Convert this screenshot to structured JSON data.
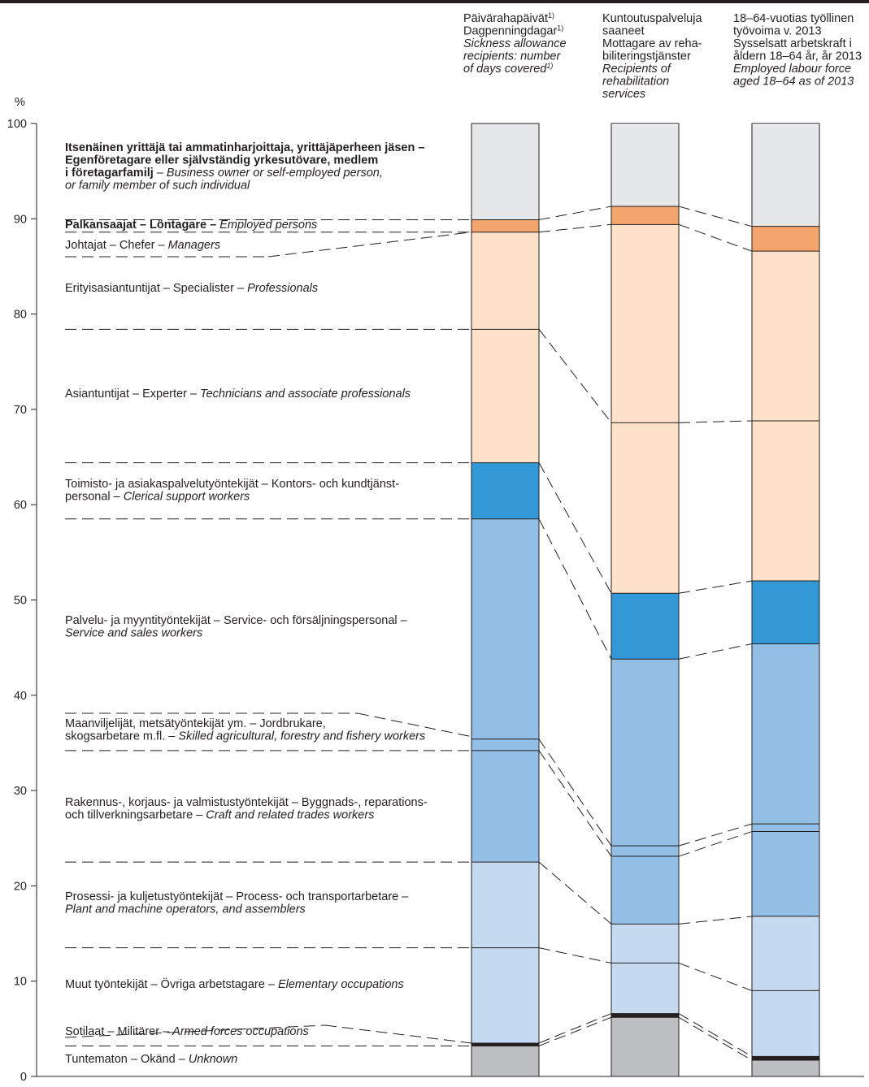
{
  "chart_data": {
    "type": "bar",
    "stacked": true,
    "normalized": true,
    "y_unit": "%",
    "ylim": [
      0,
      100
    ],
    "yticks": [
      0,
      10,
      20,
      30,
      40,
      50,
      60,
      70,
      80,
      90,
      100
    ],
    "columns": [
      {
        "header": [
          {
            "text": "Päivärahapäivät",
            "sup": "1)",
            "style": "normal"
          },
          {
            "text": "Dagpenningdagar",
            "sup": "1)",
            "style": "normal"
          },
          {
            "text": "Sickness allowance",
            "style": "italic"
          },
          {
            "text": "recipients: number",
            "style": "italic"
          },
          {
            "text": "of days covered",
            "sup": "1)",
            "style": "italic"
          }
        ]
      },
      {
        "header": [
          {
            "text": "Kuntoutuspalveluja",
            "style": "normal"
          },
          {
            "text": "saaneet",
            "style": "normal"
          },
          {
            "text": "Mottagare av reha-",
            "style": "normal"
          },
          {
            "text": "biliteringstjänster",
            "style": "normal"
          },
          {
            "text": "Recipients of",
            "style": "italic"
          },
          {
            "text": "rehabilitation",
            "style": "italic"
          },
          {
            "text": "services",
            "style": "italic"
          }
        ]
      },
      {
        "header": [
          {
            "text": "18–64-vuotias työllinen",
            "style": "normal"
          },
          {
            "text": "työvoima v. 2013",
            "style": "normal"
          },
          {
            "text": "Sysselsatt arbetskraft i",
            "style": "normal"
          },
          {
            "text": "åldern 18–64 år, år 2013",
            "style": "normal"
          },
          {
            "text": "Employed labour force",
            "style": "italic"
          },
          {
            "text": "aged 18–64 as of 2013",
            "style": "italic"
          }
        ]
      }
    ],
    "series": [
      {
        "key": "unknown",
        "color": "#bcbec0",
        "values": [
          3.2,
          6.2,
          1.7
        ],
        "label": [
          [
            {
              "t": "Tuntematon – Okänd – "
            },
            {
              "t": "Unknown",
              "i": true
            }
          ]
        ]
      },
      {
        "key": "armed_forces",
        "color": "#231f20",
        "values": [
          0.3,
          0.4,
          0.4
        ],
        "label": [
          [
            {
              "t": "Sotilaat – Militärer – "
            },
            {
              "t": "Armed forces occupations",
              "i": true
            }
          ]
        ]
      },
      {
        "key": "elementary",
        "color": "#c5daf0",
        "values": [
          10.0,
          5.3,
          6.9
        ],
        "label": [
          [
            {
              "t": "Muut työntekijät – Övriga arbetstagare – "
            },
            {
              "t": "Elementary occupations",
              "i": true
            }
          ]
        ]
      },
      {
        "key": "plant_machine",
        "color": "#c5daf0",
        "values": [
          9.0,
          4.1,
          7.8
        ],
        "label": [
          [
            {
              "t": "Prosessi- ja kuljetustyöntekijät – Process- och transportarbetare –"
            }
          ],
          [
            {
              "t": "Plant and machine operators, and assemblers",
              "i": true
            }
          ]
        ]
      },
      {
        "key": "craft_trades",
        "color": "#93bee5",
        "values": [
          11.7,
          7.1,
          8.9
        ],
        "label": [
          [
            {
              "t": "Rakennus-, korjaus- ja valmistustyöntekijät – Byggnads-, reparations-"
            }
          ],
          [
            {
              "t": "och tillverkningsarbetare – "
            },
            {
              "t": "Craft and related trades workers",
              "i": true
            }
          ]
        ]
      },
      {
        "key": "agricultural",
        "color": "#93bee5",
        "values": [
          1.2,
          1.1,
          0.8
        ],
        "label": [
          [
            {
              "t": "Maanviljelijät, metsätyöntekijät ym. – Jordbrukare,"
            }
          ],
          [
            {
              "t": "skogsarbetare m.fl. – "
            },
            {
              "t": "Skilled agricultural, forestry and fishery workers",
              "i": true
            }
          ]
        ]
      },
      {
        "key": "service_sales",
        "color": "#93bee5",
        "values": [
          23.1,
          19.6,
          18.9
        ],
        "label": [
          [
            {
              "t": "Palvelu- ja myyntityöntekijät – Service- och försäljningspersonal –"
            }
          ],
          [
            {
              "t": "Service and sales workers",
              "i": true
            }
          ]
        ]
      },
      {
        "key": "clerical",
        "color": "#3399d6",
        "values": [
          5.9,
          6.9,
          6.6
        ],
        "label": [
          [
            {
              "t": "Toimisto- ja asiakaspalvelutyöntekijät – Kontors- och kundtjänst-"
            }
          ],
          [
            {
              "t": "personal – "
            },
            {
              "t": "Clerical support workers",
              "i": true
            }
          ]
        ]
      },
      {
        "key": "technicians",
        "color": "#fde2c9",
        "values": [
          14.0,
          17.9,
          16.8
        ],
        "label": [
          [
            {
              "t": "Asiantuntijat – Experter – "
            },
            {
              "t": "Technicians and associate professionals",
              "i": true
            }
          ]
        ]
      },
      {
        "key": "professionals",
        "color": "#fde2c9",
        "values": [
          10.2,
          20.8,
          17.8
        ],
        "label": [
          [
            {
              "t": "Erityisasiantuntijat – Specialister – "
            },
            {
              "t": "Professionals",
              "i": true
            }
          ]
        ]
      },
      {
        "key": "managers",
        "color": "#f4a46d",
        "values": [
          1.3,
          1.9,
          2.6
        ],
        "label": [
          [
            {
              "t": "Johtajat – Chefer – "
            },
            {
              "t": "Managers",
              "i": true
            }
          ]
        ]
      },
      {
        "key": "self_employed",
        "color": "#e6e7e8",
        "values": [
          10.1,
          8.5,
          10.6
        ],
        "label": [
          [
            {
              "t": "Itsenäinen yrittäjä tai ammatinharjoittaja, yrittäjäperheen jäsen –",
              "b": true
            }
          ],
          [
            {
              "t": "Egenföretagare eller självständig yrkesutövare, medlem",
              "b": true
            }
          ],
          [
            {
              "t": "i företagarfamilj",
              "b": true
            },
            {
              "t": " – "
            },
            {
              "t": "Business owner or self-employed person,",
              "i": true
            }
          ],
          [
            {
              "t": "or family member of such individual",
              "i": true
            }
          ]
        ]
      }
    ],
    "group_labels": [
      {
        "key": "employed_persons",
        "bracket_at": 89.9,
        "label": [
          [
            {
              "t": "Palkansaajat – Löntagare –",
              "b": true
            },
            {
              "t": " "
            },
            {
              "t": "Employed persons",
              "i": true
            }
          ]
        ]
      }
    ]
  }
}
